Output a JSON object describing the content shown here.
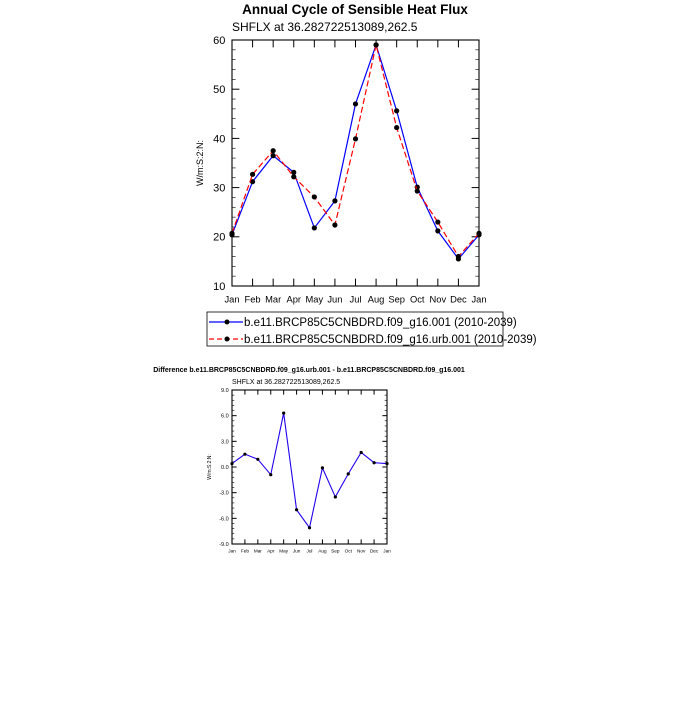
{
  "chart_data": [
    {
      "type": "line",
      "title": "Annual Cycle of Sensible Heat Flux",
      "subtitle": "SHFLX at 36.282722513089,262.5",
      "ylabel": "W/m:S:2:N:",
      "xlabel": "",
      "categories": [
        "Jan",
        "Feb",
        "Mar",
        "Apr",
        "May",
        "Jun",
        "Jul",
        "Aug",
        "Sep",
        "Oct",
        "Nov",
        "Dec",
        "Jan"
      ],
      "ylim": [
        10,
        60
      ],
      "yticks": [
        "10",
        "20",
        "30",
        "40",
        "50",
        "60"
      ],
      "grid": false,
      "legend_placement": "bottom",
      "series": [
        {
          "name": "b.e11.BRCP85C5CNBDRD.f09_g16.001 (2010-2039)",
          "color": "#0000ff",
          "style": "solid",
          "values": [
            20.4,
            31.2,
            36.5,
            33.1,
            21.8,
            27.3,
            47.0,
            59.0,
            45.6,
            30.1,
            21.2,
            15.5,
            20.4
          ]
        },
        {
          "name": "b.e11.BRCP85C5CNBDRD.f09_g16.urb.001 (2010-2039)",
          "color": "#ff0000",
          "style": "dashed",
          "values": [
            20.7,
            32.7,
            37.5,
            32.2,
            28.1,
            22.4,
            39.9,
            59.0,
            42.2,
            29.3,
            23.0,
            16.0,
            20.7
          ]
        }
      ]
    },
    {
      "type": "line",
      "title": "Difference b.e11.BRCP85C5CNBDRD.f09_g16.urb.001 - b.e11.BRCP85C5CNBDRD.f09_g16.001",
      "subtitle": "SHFLX at 36.282722513089,262.5",
      "ylabel": "W/m:S:2:N:",
      "xlabel": "",
      "categories": [
        "Jan",
        "Feb",
        "Mar",
        "Apr",
        "May",
        "Jun",
        "Jul",
        "Aug",
        "Sep",
        "Oct",
        "Nov",
        "Dec",
        "Jan"
      ],
      "ylim": [
        -9,
        9
      ],
      "yticks": [
        "-9.0",
        "-6.0",
        "-3.0",
        "0.0",
        "3.0",
        "6.0",
        "9.0"
      ],
      "grid": false,
      "series": [
        {
          "color": "#2200ee",
          "style": "solid",
          "values": [
            0.4,
            1.5,
            0.9,
            -0.9,
            6.3,
            -5.0,
            -7.1,
            -0.1,
            -3.5,
            -0.8,
            1.7,
            0.5,
            0.4
          ]
        }
      ]
    }
  ]
}
